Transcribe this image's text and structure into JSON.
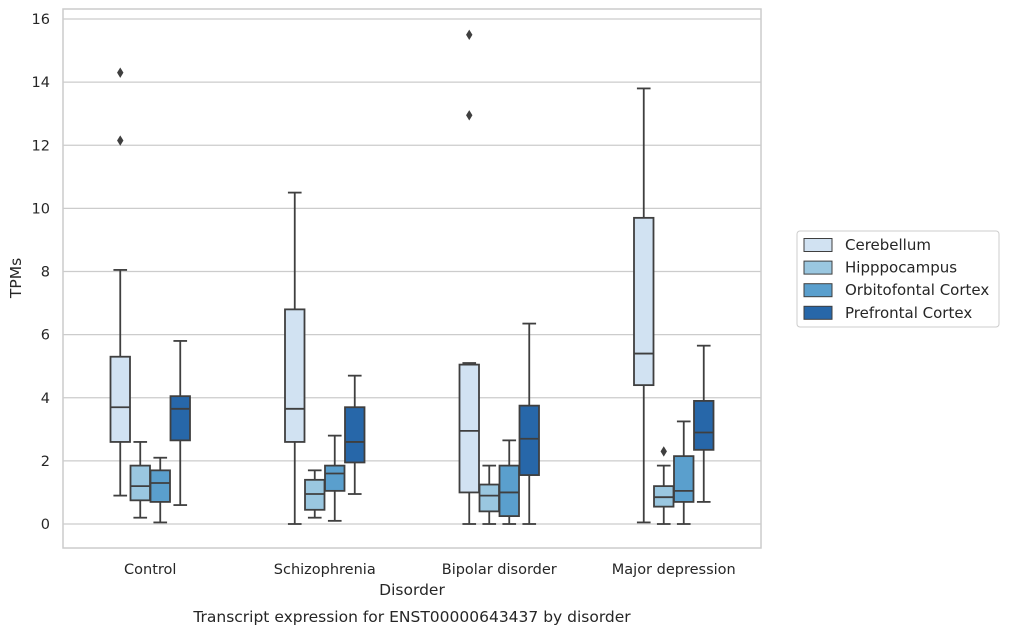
{
  "chart_data": {
    "type": "box",
    "title": "Transcript expression for ENST00000643437 by disorder",
    "xlabel": "Disorder",
    "ylabel": "TPMs",
    "ylim": [
      -0.75,
      16.3
    ],
    "yticks": [
      0,
      2,
      4,
      6,
      8,
      10,
      12,
      14,
      16
    ],
    "grid": true,
    "legend_position": "right",
    "categories": [
      "Control",
      "Schizophrenia",
      "Bipolar disorder",
      "Major depression"
    ],
    "series": [
      {
        "name": "Cerebellum",
        "color": "#d1e2f2",
        "boxes": [
          {
            "whisker_low": 0.9,
            "q1": 2.6,
            "median": 3.7,
            "q3": 5.3,
            "whisker_high": 8.05,
            "outliers": [
              12.15,
              14.3
            ]
          },
          {
            "whisker_low": 0.0,
            "q1": 2.6,
            "median": 3.65,
            "q3": 6.8,
            "whisker_high": 10.5,
            "outliers": []
          },
          {
            "whisker_low": 0.0,
            "q1": 1.0,
            "median": 2.95,
            "q3": 5.05,
            "whisker_high": 5.1,
            "outliers": [
              12.95,
              15.5
            ]
          },
          {
            "whisker_low": 0.05,
            "q1": 4.4,
            "median": 5.4,
            "q3": 9.7,
            "whisker_high": 13.8,
            "outliers": []
          }
        ]
      },
      {
        "name": "Hipppocampus",
        "color": "#9ac7e0",
        "boxes": [
          {
            "whisker_low": 0.2,
            "q1": 0.75,
            "median": 1.2,
            "q3": 1.85,
            "whisker_high": 2.6,
            "outliers": []
          },
          {
            "whisker_low": 0.2,
            "q1": 0.45,
            "median": 0.95,
            "q3": 1.4,
            "whisker_high": 1.7,
            "outliers": []
          },
          {
            "whisker_low": 0.0,
            "q1": 0.4,
            "median": 0.9,
            "q3": 1.25,
            "whisker_high": 1.85,
            "outliers": []
          },
          {
            "whisker_low": 0.0,
            "q1": 0.55,
            "median": 0.85,
            "q3": 1.2,
            "whisker_high": 1.85,
            "outliers": [
              2.3
            ]
          }
        ]
      },
      {
        "name": "Orbitofontal Cortex",
        "color": "#5a9fcd",
        "boxes": [
          {
            "whisker_low": 0.05,
            "q1": 0.7,
            "median": 1.3,
            "q3": 1.7,
            "whisker_high": 2.1,
            "outliers": []
          },
          {
            "whisker_low": 0.1,
            "q1": 1.05,
            "median": 1.6,
            "q3": 1.85,
            "whisker_high": 2.8,
            "outliers": []
          },
          {
            "whisker_low": 0.0,
            "q1": 0.25,
            "median": 1.0,
            "q3": 1.85,
            "whisker_high": 2.65,
            "outliers": []
          },
          {
            "whisker_low": 0.0,
            "q1": 0.7,
            "median": 1.05,
            "q3": 2.15,
            "whisker_high": 3.25,
            "outliers": []
          }
        ]
      },
      {
        "name": "Prefrontal Cortex",
        "color": "#2767a9",
        "boxes": [
          {
            "whisker_low": 0.6,
            "q1": 2.65,
            "median": 3.65,
            "q3": 4.05,
            "whisker_high": 5.8,
            "outliers": []
          },
          {
            "whisker_low": 0.95,
            "q1": 1.95,
            "median": 2.6,
            "q3": 3.7,
            "whisker_high": 4.7,
            "outliers": []
          },
          {
            "whisker_low": 0.0,
            "q1": 1.55,
            "median": 2.7,
            "q3": 3.75,
            "whisker_high": 6.35,
            "outliers": []
          },
          {
            "whisker_low": 0.7,
            "q1": 2.35,
            "median": 2.9,
            "q3": 3.9,
            "whisker_high": 5.65,
            "outliers": []
          }
        ]
      }
    ]
  }
}
